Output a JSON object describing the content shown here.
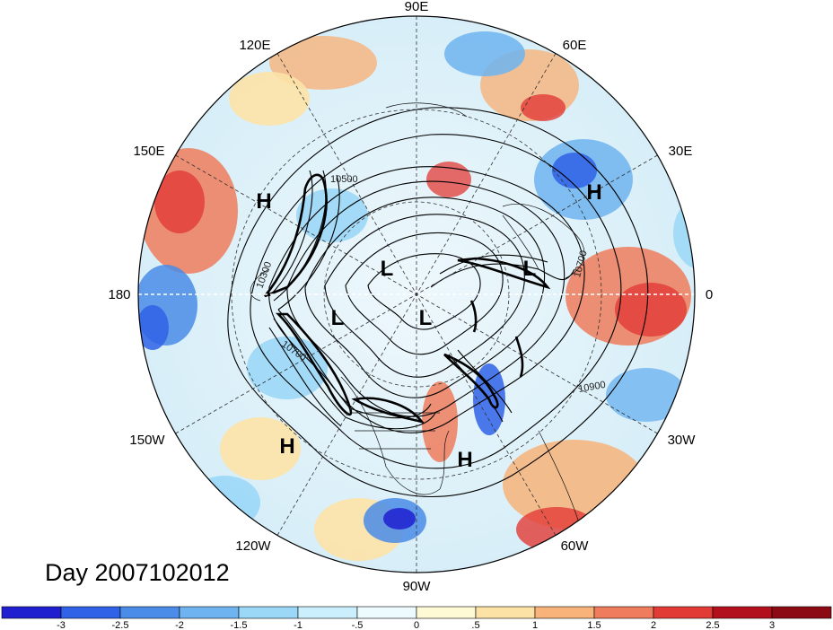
{
  "title": "Day 2007102012",
  "longitude_labels": [
    "90E",
    "120E",
    "60E",
    "150E",
    "30E",
    "180",
    "0",
    "150W",
    "30W",
    "120W",
    "60W",
    "90W"
  ],
  "pressure_systems": [
    "H",
    "H",
    "L",
    "L",
    "L",
    "L",
    "H",
    "H"
  ],
  "contour_labels": [
    "10500",
    "10700",
    "10700",
    "10900",
    "10300"
  ],
  "colorbar": {
    "ticks": [
      "-3",
      "-2.5",
      "-2",
      "-1.5",
      "-1",
      "-.5",
      "0",
      ".5",
      "1",
      "1.5",
      "2",
      "2.5",
      "3"
    ],
    "colors": [
      "#1f1fd0",
      "#2f62e6",
      "#4a8ce8",
      "#6fb4f0",
      "#9bd7f7",
      "#cbeffd",
      "#eefbfe",
      "#fffad6",
      "#fde2a6",
      "#f7b37a",
      "#ef7c5c",
      "#e23b36",
      "#b3101d",
      "#8c0a14"
    ]
  }
}
